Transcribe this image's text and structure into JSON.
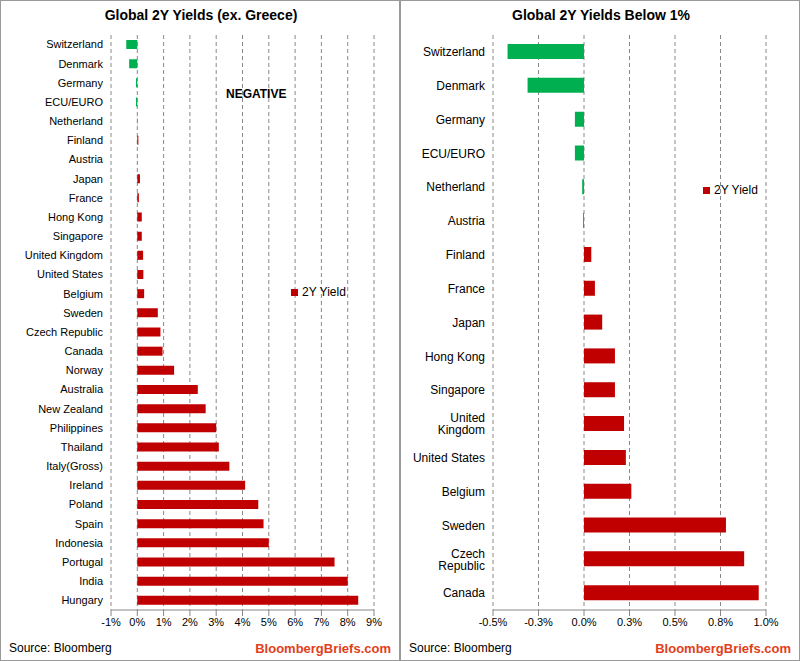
{
  "chart_data": [
    {
      "type": "bar",
      "orientation": "horizontal",
      "title": "Global 2Y Yields (ex. Greece)",
      "categories": [
        "Switzerland",
        "Denmark",
        "Germany",
        "ECU/EURO",
        "Netherland",
        "Finland",
        "Austria",
        "Japan",
        "France",
        "Hong Kong",
        "Singapore",
        "United Kingdom",
        "United States",
        "Belgium",
        "Sweden",
        "Czech Republic",
        "Canada",
        "Norway",
        "Australia",
        "New Zealand",
        "Philippines",
        "Thailand",
        "Italy(Gross)",
        "Ireland",
        "Poland",
        "Spain",
        "Indonesia",
        "Portugal",
        "India",
        "Hungary"
      ],
      "series": [
        {
          "name": "2Y Yield",
          "color": "#c00000",
          "colors": [
            "#00b050",
            "#00b050",
            "#00b050",
            "#00b050",
            "#00b050",
            "#c00000",
            "#00b050",
            "#c00000",
            "#c00000",
            "#c00000",
            "#c00000",
            "#c00000",
            "#c00000",
            "#c00000",
            "#c00000",
            "#c00000",
            "#c00000",
            "#c00000",
            "#c00000",
            "#c00000",
            "#c00000",
            "#c00000",
            "#c00000",
            "#c00000",
            "#c00000",
            "#c00000",
            "#c00000",
            "#c00000",
            "#c00000",
            "#c00000"
          ],
          "values": [
            -0.42,
            -0.31,
            -0.05,
            -0.05,
            -0.01,
            0.04,
            -0.005,
            0.1,
            0.06,
            0.17,
            0.17,
            0.22,
            0.23,
            0.26,
            0.78,
            0.88,
            0.96,
            1.4,
            2.3,
            2.6,
            3.0,
            3.1,
            3.5,
            4.1,
            4.6,
            4.8,
            5.0,
            7.5,
            8.0,
            8.4
          ]
        }
      ],
      "xlim": [
        -1,
        9
      ],
      "xticks": [
        {
          "value": -1,
          "label": "-1%"
        },
        {
          "value": 0,
          "label": "0%"
        },
        {
          "value": 1,
          "label": "1%"
        },
        {
          "value": 2,
          "label": "2%"
        },
        {
          "value": 3,
          "label": "3%"
        },
        {
          "value": 4,
          "label": "4%"
        },
        {
          "value": 5,
          "label": "5%"
        },
        {
          "value": 6,
          "label": "6%"
        },
        {
          "value": 7,
          "label": "7%"
        },
        {
          "value": 8,
          "label": "8%"
        },
        {
          "value": 9,
          "label": "9%"
        }
      ],
      "grid": true,
      "legend": "right",
      "annotations": [
        "NEGATIVE"
      ],
      "source": "Source: Bloomberg",
      "credit": "BloombergBriefs.com"
    },
    {
      "type": "bar",
      "orientation": "horizontal",
      "title": "Global 2Y Yields Below 1%",
      "categories": [
        "Switzerland",
        "Denmark",
        "Germany",
        "ECU/EURO",
        "Netherland",
        "Austria",
        "Finland",
        "France",
        "Japan",
        "Hong Kong",
        "Singapore",
        "United Kingdom",
        "United States",
        "Belgium",
        "Sweden",
        "Czech Republic",
        "Canada"
      ],
      "series": [
        {
          "name": "2Y Yield",
          "color": "#c00000",
          "colors": [
            "#00b050",
            "#00b050",
            "#00b050",
            "#00b050",
            "#00b050",
            "#00b050",
            "#c00000",
            "#c00000",
            "#c00000",
            "#c00000",
            "#c00000",
            "#c00000",
            "#c00000",
            "#c00000",
            "#c00000",
            "#c00000",
            "#c00000"
          ],
          "values": [
            -0.42,
            -0.31,
            -0.05,
            -0.05,
            -0.01,
            -0.005,
            0.04,
            0.06,
            0.1,
            0.17,
            0.17,
            0.22,
            0.23,
            0.26,
            0.78,
            0.88,
            0.96
          ]
        }
      ],
      "xlim": [
        -0.5,
        1.0
      ],
      "xticks": [
        {
          "value": -0.5,
          "label": "-0.5%"
        },
        {
          "value": -0.25,
          "label": "-0.3%"
        },
        {
          "value": 0,
          "label": "0.0%"
        },
        {
          "value": 0.25,
          "label": "0.3%"
        },
        {
          "value": 0.5,
          "label": "0.5%"
        },
        {
          "value": 0.75,
          "label": "0.8%"
        },
        {
          "value": 1,
          "label": "1.0%"
        }
      ],
      "grid": true,
      "legend": "right",
      "source": "Source: Bloomberg",
      "credit": "BloombergBriefs.com"
    }
  ]
}
